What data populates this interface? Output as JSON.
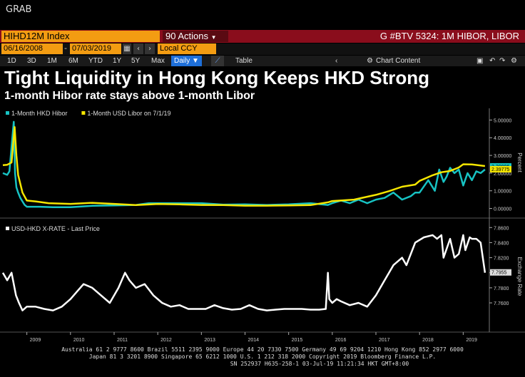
{
  "window_label": "GRAB",
  "toolbar": {
    "ticker": "HIHD12M Index",
    "actions_label": "Actions",
    "actions_prefix": "90",
    "title": "G #BTV 5324: 1M HIBOR, LIBOR",
    "start_date": "06/16/2008",
    "end_date": "07/03/2019",
    "currency": "Local CCY",
    "periods": [
      "1D",
      "3D",
      "1M",
      "6M",
      "YTD",
      "1Y",
      "5Y",
      "Max"
    ],
    "frequency": "Daily",
    "table_label": "Table",
    "chart_content_label": "Chart Content"
  },
  "headline": "Tight Liquidity in Hong Kong Keeps HKD Strong",
  "subheadline": "1-month Hibor rate stays above 1-month Libor",
  "colors": {
    "hibor": "#17c3c3",
    "libor": "#f5e600",
    "hkd": "#ffffff"
  },
  "chart_data": [
    {
      "type": "line",
      "series": [
        {
          "name": "1-Month HKD Hibor",
          "last_label": "2.20006",
          "x": [
            2008.45,
            2008.55,
            2008.6,
            2008.65,
            2008.7,
            2008.73,
            2008.76,
            2008.8,
            2008.85,
            2008.9,
            2008.95,
            2009.0,
            2009.1,
            2009.3,
            2009.6,
            2010.0,
            2010.5,
            2011.0,
            2011.5,
            2011.8,
            2012.0,
            2012.5,
            2013.0,
            2013.5,
            2014.0,
            2014.5,
            2015.0,
            2015.5,
            2015.9,
            2016.0,
            2016.2,
            2016.4,
            2016.6,
            2016.8,
            2017.0,
            2017.2,
            2017.4,
            2017.6,
            2017.8,
            2017.9,
            2018.0,
            2018.2,
            2018.35,
            2018.45,
            2018.55,
            2018.62,
            2018.7,
            2018.8,
            2018.9,
            2019.0,
            2019.1,
            2019.2,
            2019.3,
            2019.4,
            2019.5
          ],
          "y": [
            2.0,
            1.9,
            2.1,
            3.5,
            4.9,
            2.0,
            1.2,
            0.9,
            0.6,
            0.4,
            0.2,
            0.1,
            0.1,
            0.1,
            0.07,
            0.07,
            0.15,
            0.17,
            0.2,
            0.3,
            0.3,
            0.3,
            0.3,
            0.22,
            0.23,
            0.2,
            0.23,
            0.3,
            0.2,
            0.3,
            0.45,
            0.3,
            0.5,
            0.3,
            0.5,
            0.6,
            0.9,
            0.5,
            0.7,
            0.9,
            0.9,
            1.6,
            1.0,
            2.2,
            1.5,
            1.8,
            2.3,
            2.0,
            2.2,
            1.3,
            2.0,
            1.6,
            2.1,
            2.0,
            2.2
          ]
        },
        {
          "name": "1-Month USD Libor on 7/1/19",
          "last_label": "2.39775",
          "x": [
            2008.45,
            2008.55,
            2008.65,
            2008.72,
            2008.76,
            2008.8,
            2008.9,
            2009.0,
            2009.2,
            2009.5,
            2010.0,
            2010.5,
            2011.0,
            2011.5,
            2012.0,
            2012.5,
            2013.0,
            2013.5,
            2014.0,
            2014.5,
            2015.0,
            2015.5,
            2015.9,
            2016.0,
            2016.5,
            2017.0,
            2017.3,
            2017.6,
            2017.9,
            2018.0,
            2018.3,
            2018.5,
            2018.7,
            2018.9,
            2019.0,
            2019.2,
            2019.4,
            2019.5
          ],
          "y": [
            2.45,
            2.47,
            2.6,
            4.6,
            3.0,
            1.9,
            0.9,
            0.45,
            0.4,
            0.3,
            0.26,
            0.32,
            0.26,
            0.19,
            0.25,
            0.23,
            0.2,
            0.19,
            0.16,
            0.16,
            0.17,
            0.19,
            0.35,
            0.42,
            0.5,
            0.77,
            0.98,
            1.23,
            1.35,
            1.56,
            1.88,
            2.05,
            2.12,
            2.32,
            2.5,
            2.49,
            2.43,
            2.4
          ]
        }
      ],
      "ylabel": "Percent",
      "ylim": [
        -0.3,
        5.5
      ],
      "yticks": [
        "0.00000",
        "1.00000",
        "2.00000",
        "3.00000",
        "4.00000",
        "5.00000"
      ]
    },
    {
      "type": "line",
      "series": [
        {
          "name": "USD-HKD X-RATE - Last Price",
          "last_label": "7.7955",
          "x": [
            2008.45,
            2008.55,
            2008.65,
            2008.75,
            2008.82,
            2008.9,
            2009.0,
            2009.2,
            2009.4,
            2009.6,
            2009.8,
            2010.0,
            2010.15,
            2010.3,
            2010.5,
            2010.7,
            2010.9,
            2011.1,
            2011.25,
            2011.35,
            2011.5,
            2011.7,
            2011.9,
            2012.1,
            2012.3,
            2012.5,
            2012.7,
            2012.9,
            2013.1,
            2013.3,
            2013.5,
            2013.7,
            2013.9,
            2014.1,
            2014.3,
            2014.5,
            2014.7,
            2014.9,
            2015.1,
            2015.3,
            2015.5,
            2015.7,
            2015.85,
            2015.9,
            2015.93,
            2016.0,
            2016.1,
            2016.2,
            2016.4,
            2016.6,
            2016.8,
            2017.0,
            2017.2,
            2017.4,
            2017.6,
            2017.7,
            2017.9,
            2018.1,
            2018.3,
            2018.4,
            2018.5,
            2018.55,
            2018.7,
            2018.8,
            2018.9,
            2019.0,
            2019.05,
            2019.15,
            2019.2,
            2019.3,
            2019.4,
            2019.5
          ],
          "y": [
            7.8,
            7.79,
            7.8,
            7.77,
            7.76,
            7.75,
            7.755,
            7.755,
            7.752,
            7.75,
            7.755,
            7.765,
            7.775,
            7.785,
            7.78,
            7.77,
            7.76,
            7.78,
            7.8,
            7.79,
            7.78,
            7.785,
            7.77,
            7.76,
            7.755,
            7.757,
            7.752,
            7.752,
            7.752,
            7.757,
            7.753,
            7.751,
            7.752,
            7.757,
            7.752,
            7.75,
            7.751,
            7.752,
            7.752,
            7.752,
            7.751,
            7.751,
            7.752,
            7.8,
            7.765,
            7.76,
            7.765,
            7.762,
            7.757,
            7.76,
            7.755,
            7.77,
            7.79,
            7.81,
            7.82,
            7.81,
            7.84,
            7.847,
            7.85,
            7.845,
            7.85,
            7.82,
            7.845,
            7.82,
            7.825,
            7.85,
            7.83,
            7.847,
            7.845,
            7.845,
            7.84,
            7.8
          ]
        }
      ],
      "ylabel": "Exchange Rate",
      "ylim": [
        7.725,
        7.865
      ],
      "yticks": [
        "7.7600",
        "7.7800",
        "7.8000",
        "7.8200",
        "7.8400",
        "7.8600"
      ]
    }
  ],
  "x_axis": {
    "ticks": [
      "2008",
      "2009",
      "2010",
      "2011",
      "2012",
      "2013",
      "2014",
      "2015",
      "2016",
      "2017",
      "2018",
      "2019"
    ]
  },
  "footer": {
    "line1": "Australia 61 2 9777 8600 Brazil 5511 2395 9000 Europe 44 20 7330 7500 Germany 49 69 9204 1210 Hong Kong 852 2977 6000",
    "line2": "Japan 81 3 3201 8900     Singapore 65 6212 1000     U.S. 1 212 318 2000            Copyright 2019 Bloomberg Finance L.P.",
    "line3": "SN 252937 H635-258-1 03-Jul-19 11:21:34 HKT  GMT+8:00"
  }
}
